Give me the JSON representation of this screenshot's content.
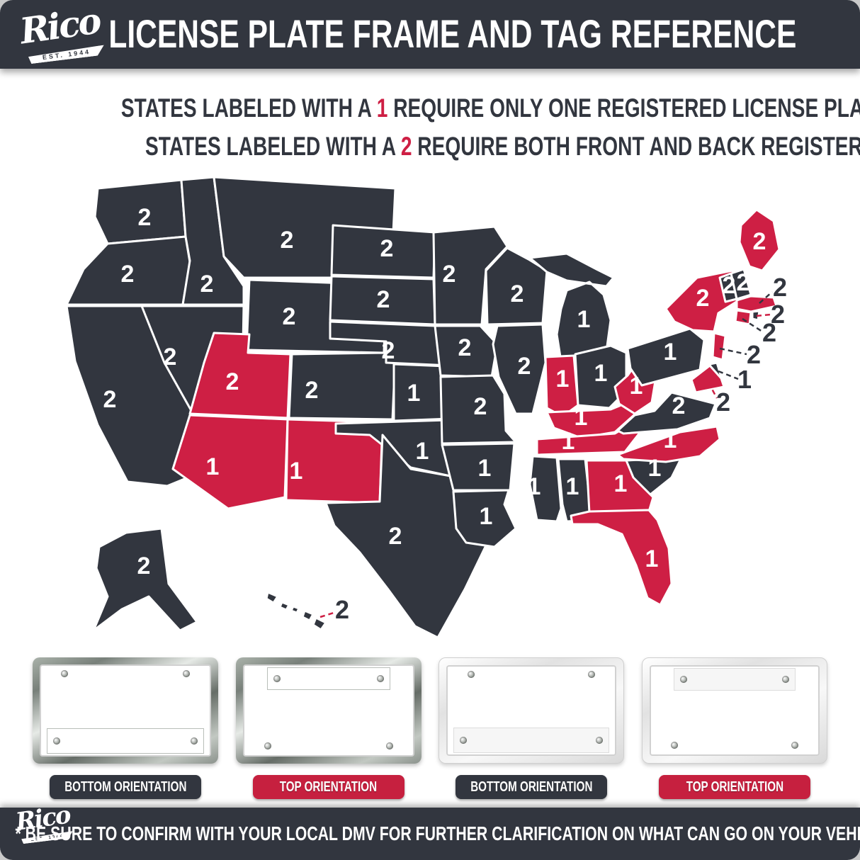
{
  "brand": {
    "name": "Rico",
    "est": "EST. 1944"
  },
  "header": {
    "title": "LICENSE PLATE FRAME AND TAG REFERENCE"
  },
  "legend": {
    "line1": {
      "pre": "STATES LABELED WITH A",
      "num": "1",
      "post": "REQUIRE ONLY ONE REGISTERED LICENSE PLATE"
    },
    "line2": {
      "pre": "STATES LABELED WITH A",
      "num": "2",
      "post": "REQUIRE BOTH FRONT AND BACK REGISTERED LICENSE PLATES"
    }
  },
  "colors": {
    "dark": "#32363F",
    "red": "#CE1F44",
    "pill_red": "#C6203F",
    "white": "#FFFFFF"
  },
  "map": {
    "states": [
      {
        "id": "WA",
        "name": "Washington",
        "plates": "2",
        "color": "dark"
      },
      {
        "id": "OR",
        "name": "Oregon",
        "plates": "2",
        "color": "dark"
      },
      {
        "id": "CA",
        "name": "California",
        "plates": "2",
        "color": "dark"
      },
      {
        "id": "NV",
        "name": "Nevada",
        "plates": "2",
        "color": "dark"
      },
      {
        "id": "ID",
        "name": "Idaho",
        "plates": "2",
        "color": "dark"
      },
      {
        "id": "MT",
        "name": "Montana",
        "plates": "2",
        "color": "dark"
      },
      {
        "id": "WY",
        "name": "Wyoming",
        "plates": "2",
        "color": "dark"
      },
      {
        "id": "UT",
        "name": "Utah",
        "plates": "2",
        "color": "red"
      },
      {
        "id": "CO",
        "name": "Colorado",
        "plates": "2",
        "color": "dark"
      },
      {
        "id": "AZ",
        "name": "Arizona",
        "plates": "1",
        "color": "red"
      },
      {
        "id": "NM",
        "name": "New Mexico",
        "plates": "1",
        "color": "red"
      },
      {
        "id": "ND",
        "name": "North Dakota",
        "plates": "2",
        "color": "dark"
      },
      {
        "id": "SD",
        "name": "South Dakota",
        "plates": "2",
        "color": "dark"
      },
      {
        "id": "NE",
        "name": "Nebraska",
        "plates": "2",
        "color": "dark"
      },
      {
        "id": "KS",
        "name": "Kansas",
        "plates": "1",
        "color": "dark"
      },
      {
        "id": "OK",
        "name": "Oklahoma",
        "plates": "1",
        "color": "dark"
      },
      {
        "id": "TX",
        "name": "Texas",
        "plates": "2",
        "color": "dark"
      },
      {
        "id": "MN",
        "name": "Minnesota",
        "plates": "2",
        "color": "dark"
      },
      {
        "id": "IA",
        "name": "Iowa",
        "plates": "2",
        "color": "dark"
      },
      {
        "id": "MO",
        "name": "Missouri",
        "plates": "2",
        "color": "dark"
      },
      {
        "id": "AR",
        "name": "Arkansas",
        "plates": "1",
        "color": "dark"
      },
      {
        "id": "LA",
        "name": "Louisiana",
        "plates": "1",
        "color": "dark"
      },
      {
        "id": "WI",
        "name": "Wisconsin",
        "plates": "2",
        "color": "dark"
      },
      {
        "id": "IL",
        "name": "Illinois",
        "plates": "2",
        "color": "dark"
      },
      {
        "id": "MI",
        "name": "Michigan",
        "plates": "1",
        "color": "dark"
      },
      {
        "id": "IN",
        "name": "Indiana",
        "plates": "1",
        "color": "red"
      },
      {
        "id": "OH",
        "name": "Ohio",
        "plates": "1",
        "color": "dark"
      },
      {
        "id": "KY",
        "name": "Kentucky",
        "plates": "1",
        "color": "red"
      },
      {
        "id": "TN",
        "name": "Tennessee",
        "plates": "1",
        "color": "red"
      },
      {
        "id": "MS",
        "name": "Mississippi",
        "plates": "1",
        "color": "dark"
      },
      {
        "id": "AL",
        "name": "Alabama",
        "plates": "1",
        "color": "dark"
      },
      {
        "id": "GA",
        "name": "Georgia",
        "plates": "1",
        "color": "red"
      },
      {
        "id": "FL",
        "name": "Florida",
        "plates": "1",
        "color": "red"
      },
      {
        "id": "SC",
        "name": "South Carolina",
        "plates": "1",
        "color": "dark"
      },
      {
        "id": "NC",
        "name": "North Carolina",
        "plates": "1",
        "color": "red"
      },
      {
        "id": "VA",
        "name": "Virginia",
        "plates": "2",
        "color": "dark"
      },
      {
        "id": "WV",
        "name": "West Virginia",
        "plates": "1",
        "color": "red"
      },
      {
        "id": "PA",
        "name": "Pennsylvania",
        "plates": "1",
        "color": "dark"
      },
      {
        "id": "NY",
        "name": "New York",
        "plates": "2",
        "color": "red"
      },
      {
        "id": "ME",
        "name": "Maine",
        "plates": "2",
        "color": "red"
      },
      {
        "id": "VT",
        "name": "Vermont",
        "plates": "2",
        "color": "dark"
      },
      {
        "id": "NH",
        "name": "New Hampshire",
        "plates": "2",
        "color": "dark"
      },
      {
        "id": "MA",
        "name": "Massachusetts",
        "plates": "2",
        "color": "red",
        "callout": true,
        "callout_color": "dark"
      },
      {
        "id": "RI",
        "name": "Rhode Island",
        "plates": "2",
        "color": "dark",
        "callout": true,
        "callout_color": "red"
      },
      {
        "id": "CT",
        "name": "Connecticut",
        "plates": "2",
        "color": "red",
        "callout": true,
        "callout_color": "dark"
      },
      {
        "id": "NJ",
        "name": "New Jersey",
        "plates": "2",
        "color": "red",
        "callout": true,
        "callout_color": "dark"
      },
      {
        "id": "DE",
        "name": "Delaware",
        "plates": "1",
        "color": "dark",
        "callout": true,
        "callout_color": "dark"
      },
      {
        "id": "MD",
        "name": "Maryland",
        "plates": "2",
        "color": "red",
        "callout": true,
        "callout_color": "red"
      },
      {
        "id": "AK",
        "name": "Alaska",
        "plates": "2",
        "color": "dark"
      },
      {
        "id": "HI",
        "name": "Hawaii",
        "plates": "2",
        "color": "dark",
        "callout": true,
        "callout_color": "red"
      }
    ]
  },
  "frames": [
    {
      "label": "BOTTOM ORIENTATION",
      "style": "chrome",
      "orientation": "bottom",
      "pill": "dark"
    },
    {
      "label": "TOP ORIENTATION",
      "style": "chrome",
      "orientation": "top",
      "pill": "red"
    },
    {
      "label": "BOTTOM ORIENTATION",
      "style": "white",
      "orientation": "bottom",
      "pill": "dark"
    },
    {
      "label": "TOP ORIENTATION",
      "style": "white",
      "orientation": "top",
      "pill": "red"
    }
  ],
  "footer": {
    "disclaimer": "* BE SURE TO CONFIRM WITH YOUR LOCAL DMV FOR FURTHER CLARIFICATION ON WHAT CAN GO ON YOUR VEHICLE *"
  }
}
